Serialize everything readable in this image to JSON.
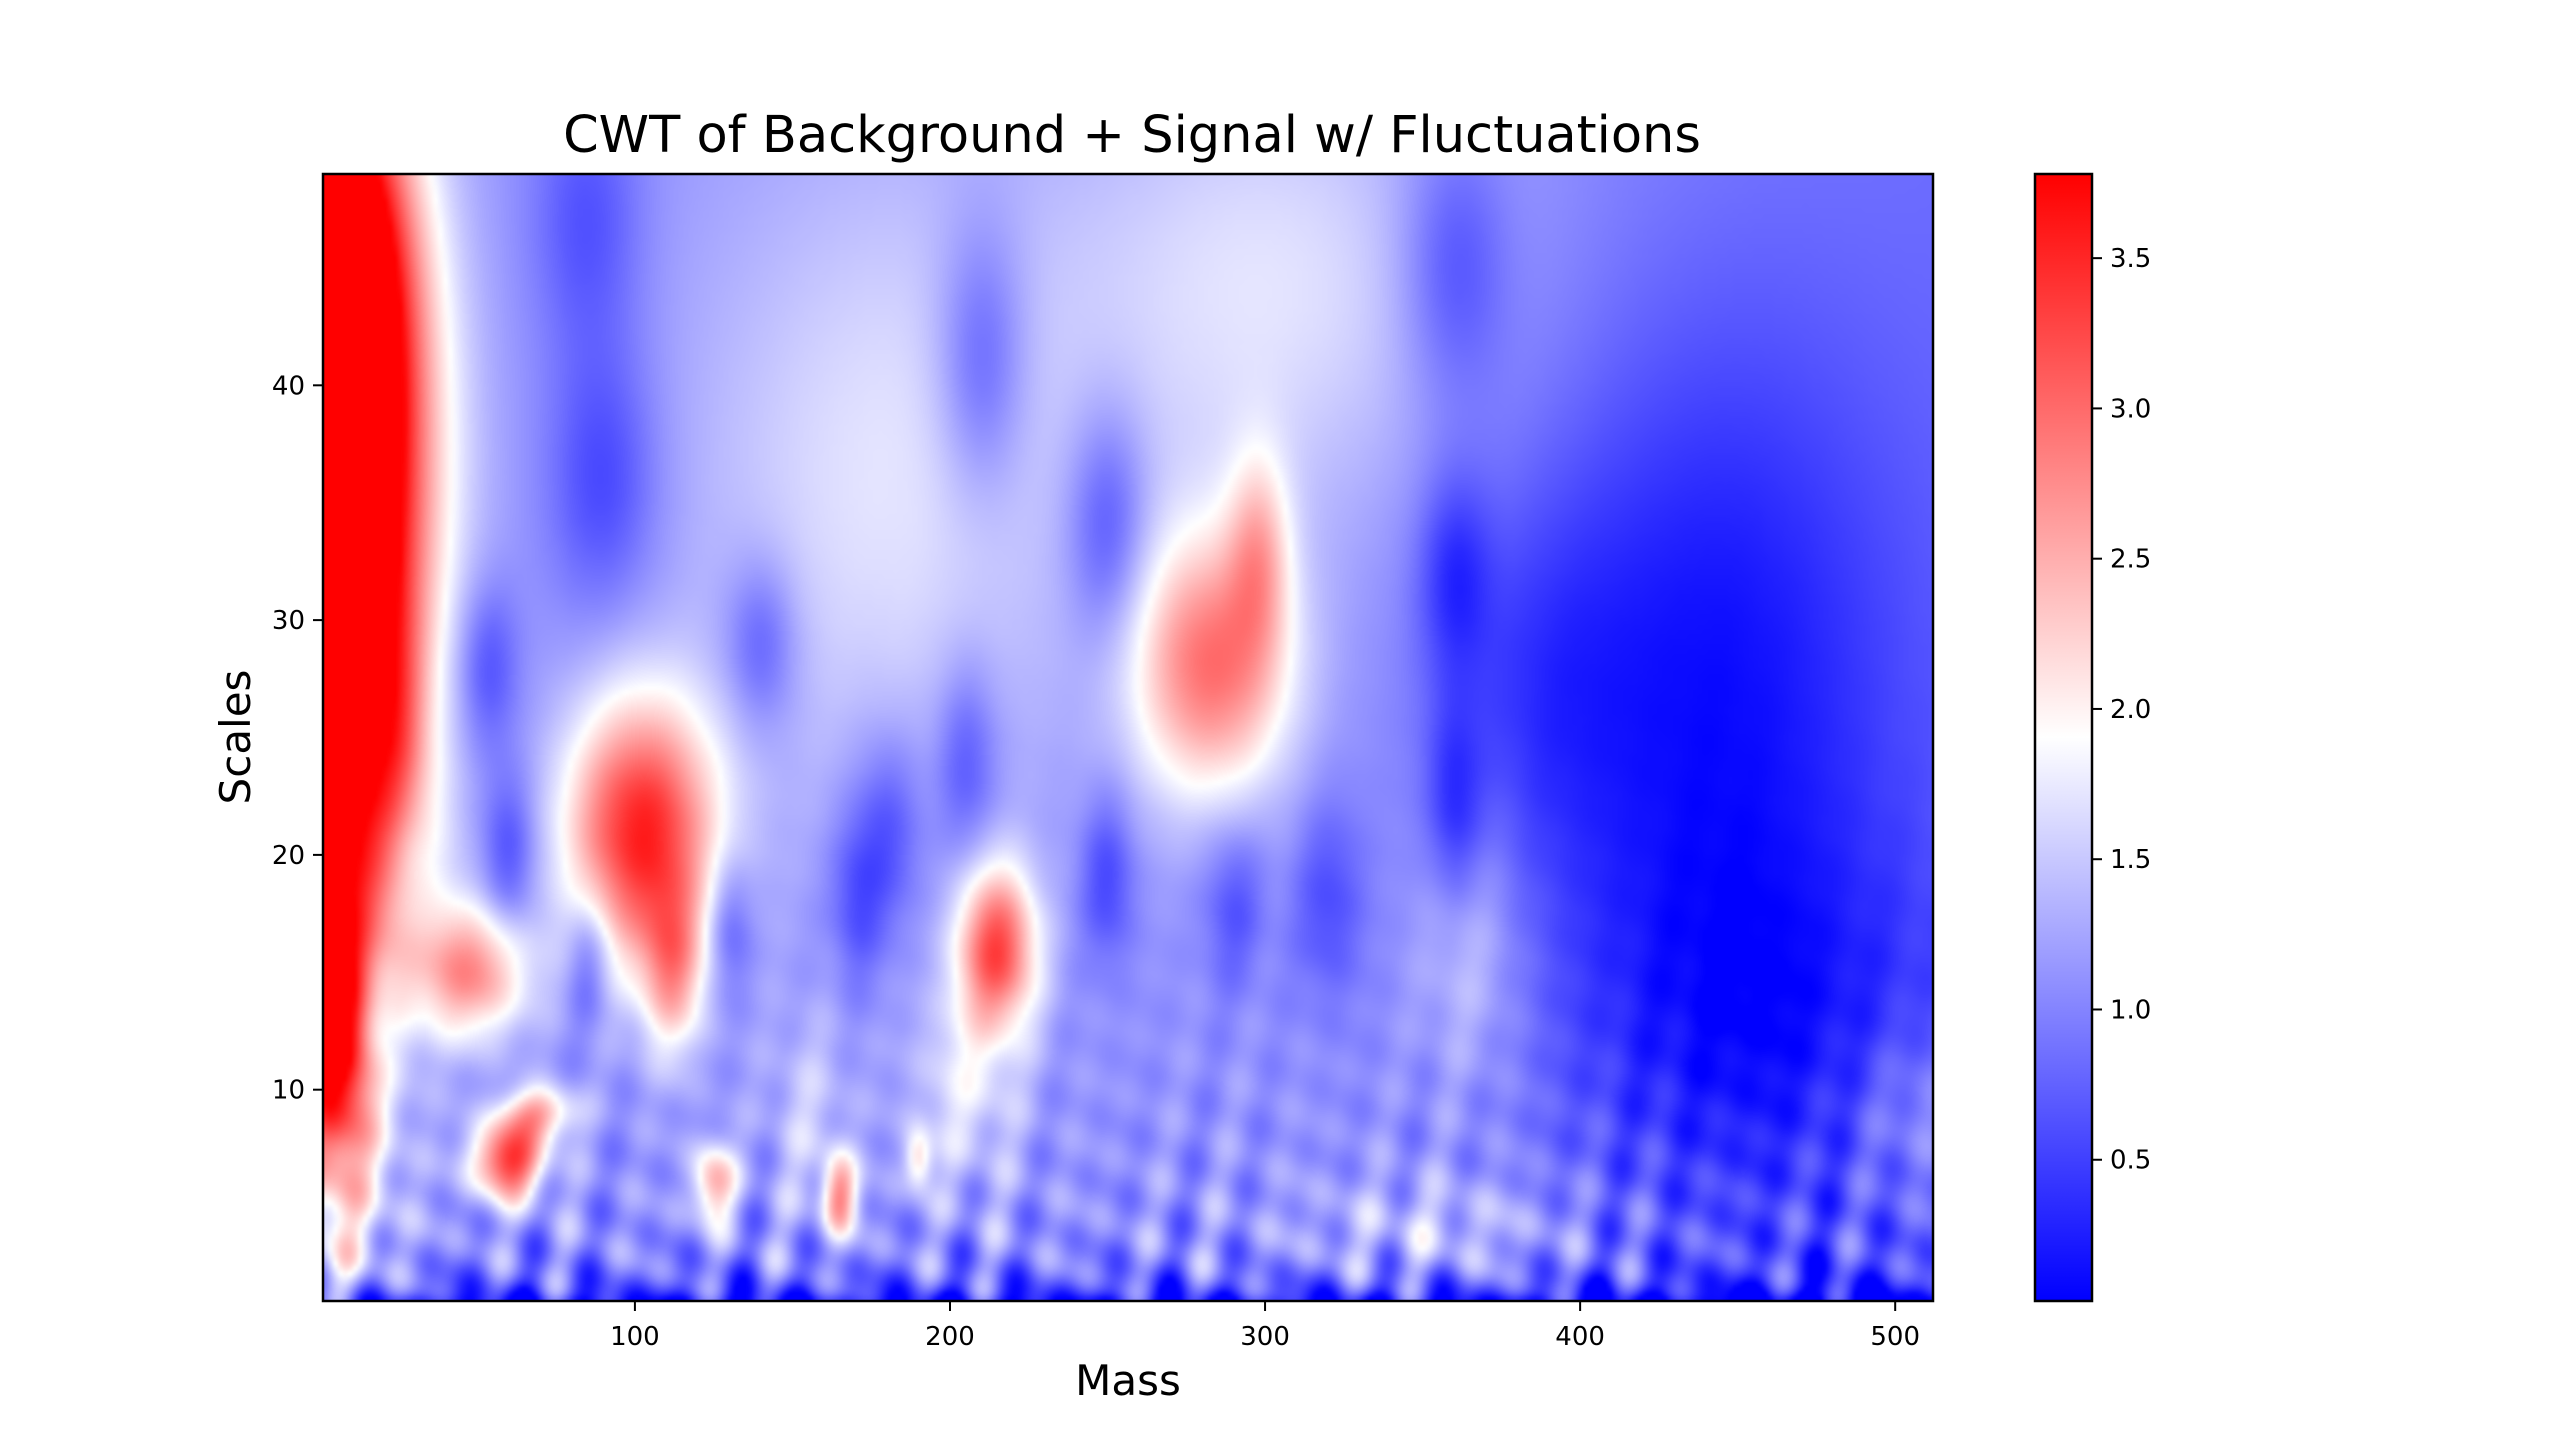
{
  "chart_data": {
    "type": "heatmap",
    "title": "CWT of Background + Signal w/ Fluctuations",
    "xlabel": "Mass",
    "ylabel": "Scales",
    "xlim": [
      1,
      512
    ],
    "ylim": [
      1,
      49
    ],
    "x_ticks": [
      100,
      200,
      300,
      400,
      500
    ],
    "y_ticks": [
      10,
      20,
      30,
      40
    ],
    "colorbar": {
      "colormap": "bwr",
      "range": [
        0.03,
        3.78
      ],
      "ticks": [
        0.5,
        1.0,
        1.5,
        2.0,
        2.5,
        3.0,
        3.5
      ],
      "tick_labels": [
        "0.5",
        "1.0",
        "1.5",
        "2.0",
        "2.5",
        "3.0",
        "3.5"
      ]
    },
    "grid": false,
    "base_value": 1.1,
    "features": [
      {
        "x": 10,
        "y": 36,
        "sx": 20,
        "sy": 10,
        "amp": 2.6
      },
      {
        "x": 5,
        "y": 28,
        "sx": 14,
        "sy": 16,
        "amp": 2.2
      },
      {
        "x": 5,
        "y": 12,
        "sx": 8,
        "sy": 4,
        "amp": 1.8
      },
      {
        "x": 3,
        "y": 45,
        "sx": 16,
        "sy": 6,
        "amp": 2.1
      },
      {
        "x": 102,
        "y": 21,
        "sx": 17,
        "sy": 4,
        "amp": 2.4
      },
      {
        "x": 112,
        "y": 15,
        "sx": 7,
        "sy": 2.5,
        "amp": 1.2
      },
      {
        "x": 283,
        "y": 28,
        "sx": 18,
        "sy": 4,
        "amp": 1.8
      },
      {
        "x": 298,
        "y": 33,
        "sx": 7,
        "sy": 3,
        "amp": 0.9
      },
      {
        "x": 215,
        "y": 16,
        "sx": 9,
        "sy": 2.5,
        "amp": 2.1
      },
      {
        "x": 48,
        "y": 15,
        "sx": 13,
        "sy": 2.0,
        "amp": 1.6
      },
      {
        "x": 60,
        "y": 7,
        "sx": 8,
        "sy": 1.2,
        "amp": 2.3
      },
      {
        "x": 70,
        "y": 9,
        "sx": 8,
        "sy": 0.8,
        "amp": 1.3
      },
      {
        "x": 125,
        "y": 6,
        "sx": 5,
        "sy": 1.2,
        "amp": 1.4
      },
      {
        "x": 165,
        "y": 5.5,
        "sx": 4,
        "sy": 1.2,
        "amp": 1.6
      },
      {
        "x": 190,
        "y": 7,
        "sx": 3,
        "sy": 0.9,
        "amp": 1.0
      },
      {
        "x": 180,
        "y": 36,
        "sx": 45,
        "sy": 10,
        "amp": 0.6
      },
      {
        "x": 300,
        "y": 44,
        "sx": 45,
        "sy": 7,
        "amp": 0.6
      },
      {
        "x": 365,
        "y": 16,
        "sx": 12,
        "sy": 4,
        "amp": 0.5
      },
      {
        "x": 30,
        "y": 20,
        "sx": 10,
        "sy": 3,
        "amp": 0.5
      },
      {
        "x": 26,
        "y": 24,
        "sx": 6,
        "sy": 4,
        "amp": 0.6
      },
      {
        "x": 205,
        "y": 10,
        "sx": 12,
        "sy": 3,
        "amp": 0.6
      },
      {
        "x": 155,
        "y": 9,
        "sx": 10,
        "sy": 3,
        "amp": 0.4
      },
      {
        "x": 510,
        "y": 9,
        "sx": 18,
        "sy": 2.5,
        "amp": 0.5
      },
      {
        "x": 355,
        "y": 4,
        "sx": 30,
        "sy": 1.5,
        "amp": 0.4
      },
      {
        "x": 440,
        "y": 27,
        "sx": 42,
        "sy": 11,
        "amp": -0.85
      },
      {
        "x": 455,
        "y": 12,
        "sx": 45,
        "sy": 6,
        "amp": -0.6
      },
      {
        "x": 210,
        "y": 41,
        "sx": 10,
        "sy": 4,
        "amp": -0.7
      },
      {
        "x": 250,
        "y": 34,
        "sx": 9,
        "sy": 3.5,
        "amp": -0.7
      },
      {
        "x": 360,
        "y": 45,
        "sx": 12,
        "sy": 4,
        "amp": -0.6
      },
      {
        "x": 360,
        "y": 32,
        "sx": 8,
        "sy": 3,
        "amp": -0.6
      },
      {
        "x": 90,
        "y": 36,
        "sx": 12,
        "sy": 4,
        "amp": -0.6
      },
      {
        "x": 85,
        "y": 47,
        "sx": 12,
        "sy": 4,
        "amp": -0.5
      },
      {
        "x": 140,
        "y": 29,
        "sx": 8,
        "sy": 2.5,
        "amp": -0.6
      },
      {
        "x": 53,
        "y": 28,
        "sx": 7,
        "sy": 2.5,
        "amp": -0.6
      },
      {
        "x": 180,
        "y": 21,
        "sx": 8,
        "sy": 3,
        "amp": -0.6
      },
      {
        "x": 205,
        "y": 24,
        "sx": 7,
        "sy": 3,
        "amp": -0.6
      },
      {
        "x": 170,
        "y": 18,
        "sx": 6,
        "sy": 2.5,
        "amp": -0.5
      },
      {
        "x": 28,
        "y": 20,
        "sx": 6,
        "sy": 2.5,
        "amp": -0.6
      },
      {
        "x": 60,
        "y": 20,
        "sx": 6,
        "sy": 2.5,
        "amp": -0.6
      },
      {
        "x": 250,
        "y": 19,
        "sx": 6,
        "sy": 2.5,
        "amp": -0.6
      },
      {
        "x": 290,
        "y": 18,
        "sx": 7,
        "sy": 2.5,
        "amp": -0.5
      },
      {
        "x": 320,
        "y": 18,
        "sx": 8,
        "sy": 3,
        "amp": -0.5
      },
      {
        "x": 360,
        "y": 22,
        "sx": 6,
        "sy": 3,
        "amp": -0.6
      },
      {
        "x": 385,
        "y": 27,
        "sx": 22,
        "sy": 6,
        "amp": -0.4
      },
      {
        "x": 85,
        "y": 15.5,
        "sx": 5,
        "sy": 2,
        "amp": -0.6
      },
      {
        "x": 130,
        "y": 17,
        "sx": 5,
        "sy": 2,
        "amp": -0.6
      },
      {
        "x": 18,
        "y": 13,
        "sx": 5,
        "sy": 2,
        "amp": -0.5
      }
    ],
    "ripple": {
      "amp": 0.7,
      "below_scale": 13
    }
  }
}
